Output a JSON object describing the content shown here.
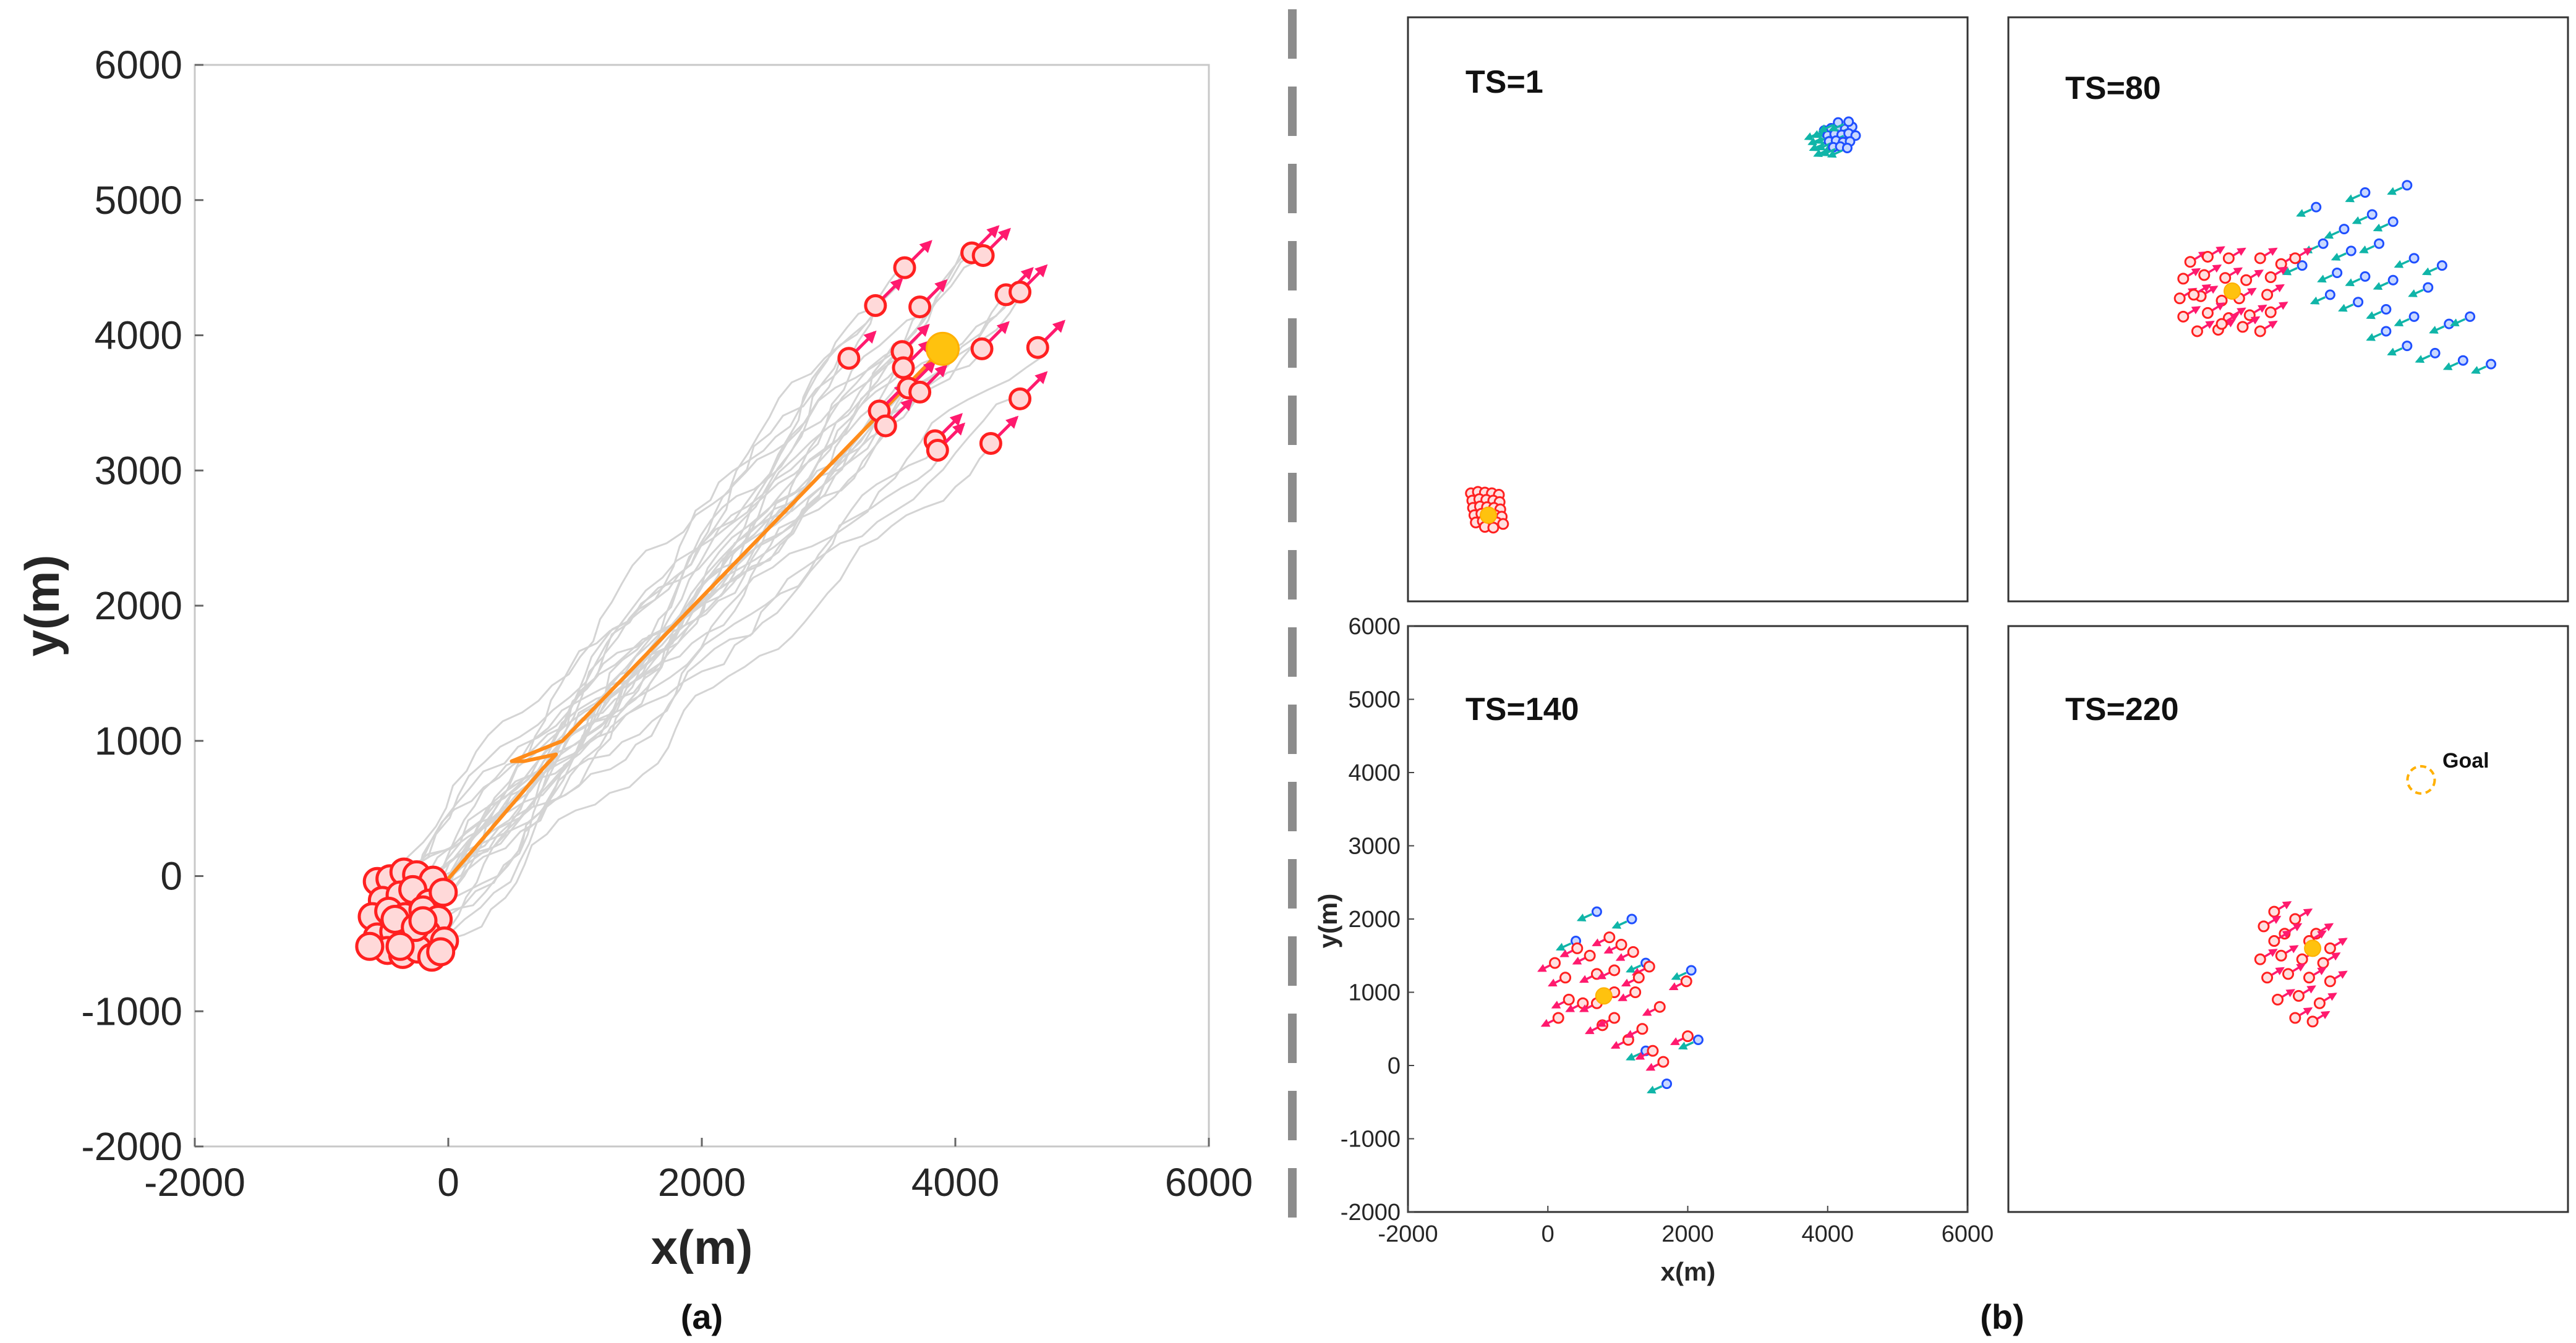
{
  "chart_data": [
    {
      "id": "a",
      "type": "scatter",
      "caption": "(a)",
      "xlabel": "x(m)",
      "ylabel": "y(m)",
      "xlim": [
        -2000,
        6000
      ],
      "ylim": [
        -2000,
        6000
      ],
      "xticks": [
        "-2000",
        "0",
        "2000",
        "4000",
        "6000"
      ],
      "yticks": [
        "-2000",
        "-1000",
        "0",
        "1000",
        "2000",
        "3000",
        "4000",
        "5000",
        "6000"
      ],
      "colors": {
        "agent": "#ff2020",
        "arrow": "#ff1a6e",
        "leader": "#ff8c1a",
        "goal": "#ffc20e",
        "traj": "#d4d4d4"
      },
      "series": [
        {
          "name": "start_agents",
          "points": [
            [
              -560,
              -40
            ],
            [
              -460,
              -20
            ],
            [
              -350,
              30
            ],
            [
              -250,
              10
            ],
            [
              -120,
              -30
            ],
            [
              -520,
              -180
            ],
            [
              -380,
              -140
            ],
            [
              -280,
              -100
            ],
            [
              -150,
              -200
            ],
            [
              -40,
              -120
            ],
            [
              -600,
              -300
            ],
            [
              -470,
              -260
            ],
            [
              -340,
              -300
            ],
            [
              -200,
              -250
            ],
            [
              -80,
              -320
            ],
            [
              -560,
              -450
            ],
            [
              -430,
              -410
            ],
            [
              -300,
              -470
            ],
            [
              -170,
              -420
            ],
            [
              -30,
              -480
            ],
            [
              -480,
              -550
            ],
            [
              -360,
              -580
            ],
            [
              -240,
              -540
            ],
            [
              -130,
              -600
            ],
            [
              -60,
              -560
            ],
            [
              -620,
              -520
            ],
            [
              -420,
              -320
            ],
            [
              -260,
              -380
            ],
            [
              -380,
              -520
            ],
            [
              -200,
              -330
            ]
          ]
        },
        {
          "name": "end_agents",
          "points": [
            [
              3600,
              4500
            ],
            [
              4130,
              4610
            ],
            [
              4220,
              4590
            ],
            [
              3370,
              4220
            ],
            [
              3720,
              4210
            ],
            [
              4400,
              4300
            ],
            [
              4510,
              4320
            ],
            [
              3160,
              3830
            ],
            [
              3580,
              3880
            ],
            [
              3590,
              3760
            ],
            [
              4210,
              3900
            ],
            [
              4650,
              3910
            ],
            [
              3400,
              3440
            ],
            [
              3630,
              3610
            ],
            [
              3720,
              3580
            ],
            [
              4510,
              3530
            ],
            [
              3450,
              3330
            ],
            [
              3840,
              3220
            ],
            [
              3860,
              3150
            ],
            [
              4280,
              3200
            ]
          ]
        },
        {
          "name": "leader_path",
          "points": [
            [
              0,
              -20
            ],
            [
              750,
              800
            ],
            [
              850,
              900
            ],
            [
              600,
              850
            ],
            [
              500,
              850
            ],
            [
              900,
              1000
            ],
            [
              3900,
              3900
            ]
          ]
        },
        {
          "name": "goal",
          "points": [
            [
              3900,
              3900
            ]
          ]
        }
      ]
    },
    {
      "id": "b1",
      "type": "scatter",
      "label": "TS=1",
      "xlim": [
        -2000,
        6000
      ],
      "ylim": [
        -2000,
        6000
      ],
      "series": [
        {
          "name": "red",
          "points": [
            [
              -1100,
              -520
            ],
            [
              -1000,
              -500
            ],
            [
              -900,
              -510
            ],
            [
              -800,
              -520
            ],
            [
              -700,
              -540
            ],
            [
              -1080,
              -620
            ],
            [
              -980,
              -600
            ],
            [
              -880,
              -610
            ],
            [
              -780,
              -620
            ],
            [
              -690,
              -640
            ],
            [
              -1070,
              -720
            ],
            [
              -970,
              -700
            ],
            [
              -870,
              -710
            ],
            [
              -770,
              -720
            ],
            [
              -680,
              -740
            ],
            [
              -1050,
              -820
            ],
            [
              -950,
              -800
            ],
            [
              -850,
              -810
            ],
            [
              -750,
              -820
            ],
            [
              -660,
              -840
            ],
            [
              -1030,
              -920
            ],
            [
              -930,
              -900
            ],
            [
              -830,
              -910
            ],
            [
              -730,
              -920
            ],
            [
              -640,
              -940
            ],
            [
              -900,
              -980
            ],
            [
              -780,
              -990
            ]
          ]
        },
        {
          "name": "blue",
          "points": [
            [
              3950,
              4450
            ],
            [
              4050,
              4480
            ],
            [
              4150,
              4490
            ],
            [
              4250,
              4470
            ],
            [
              4350,
              4500
            ],
            [
              4000,
              4380
            ],
            [
              4100,
              4400
            ],
            [
              4200,
              4390
            ],
            [
              4300,
              4410
            ],
            [
              4400,
              4380
            ],
            [
              4020,
              4300
            ],
            [
              4120,
              4310
            ],
            [
              4220,
              4290
            ],
            [
              4320,
              4300
            ],
            [
              4080,
              4220
            ],
            [
              4180,
              4230
            ],
            [
              4280,
              4210
            ],
            [
              4150,
              4560
            ],
            [
              4300,
              4570
            ]
          ]
        },
        {
          "name": "leader",
          "points": [
            [
              -850,
              -820
            ]
          ]
        }
      ]
    },
    {
      "id": "b2",
      "type": "scatter",
      "label": "TS=80",
      "xlim": [
        -2000,
        6000
      ],
      "ylim": [
        -2000,
        6000
      ],
      "series": [
        {
          "name": "red",
          "points": [
            [
              600,
              2650
            ],
            [
              850,
              2720
            ],
            [
              1150,
              2700
            ],
            [
              1600,
              2700
            ],
            [
              1900,
              2620
            ],
            [
              500,
              2420
            ],
            [
              800,
              2470
            ],
            [
              1100,
              2430
            ],
            [
              1400,
              2400
            ],
            [
              1750,
              2440
            ],
            [
              450,
              2150
            ],
            [
              750,
              2180
            ],
            [
              1050,
              2120
            ],
            [
              1300,
              2150
            ],
            [
              1700,
              2200
            ],
            [
              500,
              1900
            ],
            [
              850,
              1950
            ],
            [
              1150,
              1880
            ],
            [
              1450,
              1920
            ],
            [
              1750,
              1960
            ],
            [
              700,
              1700
            ],
            [
              1000,
              1720
            ],
            [
              1350,
              1760
            ],
            [
              1600,
              1700
            ],
            [
              2100,
              2700
            ],
            [
              650,
              2200
            ],
            [
              1050,
              1800
            ]
          ]
        },
        {
          "name": "blue",
          "points": [
            [
              2400,
              3400
            ],
            [
              2800,
              3100
            ],
            [
              3100,
              3600
            ],
            [
              3500,
              3200
            ],
            [
              3700,
              3700
            ],
            [
              2500,
              2900
            ],
            [
              2900,
              2800
            ],
            [
              3300,
              2900
            ],
            [
              3800,
              2700
            ],
            [
              4200,
              2600
            ],
            [
              2200,
              2600
            ],
            [
              2700,
              2500
            ],
            [
              3100,
              2450
            ],
            [
              3500,
              2400
            ],
            [
              4000,
              2300
            ],
            [
              2600,
              2200
            ],
            [
              3000,
              2100
            ],
            [
              3400,
              2000
            ],
            [
              3800,
              1900
            ],
            [
              4300,
              1800
            ],
            [
              3400,
              1700
            ],
            [
              3700,
              1500
            ],
            [
              4100,
              1400
            ],
            [
              4500,
              1300
            ],
            [
              4900,
              1250
            ],
            [
              4600,
              1900
            ],
            [
              3200,
              3300
            ]
          ]
        },
        {
          "name": "leader",
          "points": [
            [
              1200,
              2250
            ]
          ]
        }
      ]
    },
    {
      "id": "b3",
      "type": "scatter",
      "label": "TS=140",
      "xlabel": "x(m)",
      "ylabel": "y(m)",
      "xlim": [
        -2000,
        6000
      ],
      "ylim": [
        -2000,
        6000
      ],
      "xticks": [
        "-2000",
        "0",
        "2000",
        "4000",
        "6000"
      ],
      "yticks": [
        "-2000",
        "-1000",
        "0",
        "1000",
        "2000",
        "3000",
        "4000",
        "5000",
        "6000"
      ],
      "series": [
        {
          "name": "red",
          "points": [
            [
              100,
              1400
            ],
            [
              250,
              1200
            ],
            [
              420,
              1600
            ],
            [
              600,
              1500
            ],
            [
              880,
              1750
            ],
            [
              1050,
              1650
            ],
            [
              1220,
              1550
            ],
            [
              1450,
              1350
            ],
            [
              1980,
              1150
            ],
            [
              700,
              1250
            ],
            [
              950,
              1300
            ],
            [
              300,
              900
            ],
            [
              500,
              850
            ],
            [
              700,
              850
            ],
            [
              950,
              1000
            ],
            [
              1250,
              1000
            ],
            [
              1600,
              800
            ],
            [
              150,
              650
            ],
            [
              780,
              550
            ],
            [
              950,
              650
            ],
            [
              1150,
              350
            ],
            [
              1350,
              500
            ],
            [
              1500,
              200
            ],
            [
              1650,
              50
            ],
            [
              2000,
              400
            ],
            [
              1300,
              1200
            ]
          ]
        },
        {
          "name": "blue",
          "points": [
            [
              700,
              2100
            ],
            [
              1200,
              2000
            ],
            [
              400,
              1700
            ],
            [
              1400,
              1400
            ],
            [
              2050,
              1300
            ],
            [
              1400,
              200
            ],
            [
              2150,
              350
            ],
            [
              1700,
              -250
            ]
          ]
        },
        {
          "name": "leader",
          "points": [
            [
              800,
              950
            ]
          ]
        }
      ]
    },
    {
      "id": "b4",
      "type": "scatter",
      "label": "TS=220",
      "xlim": [
        -2000,
        6000
      ],
      "ylim": [
        -2000,
        6000
      ],
      "annotations": [
        {
          "text": "Goal"
        }
      ],
      "series": [
        {
          "name": "red",
          "points": [
            [
              1800,
              2100
            ],
            [
              2100,
              2000
            ],
            [
              2400,
              1800
            ],
            [
              1650,
              1900
            ],
            [
              1950,
              1800
            ],
            [
              2300,
              1700
            ],
            [
              2600,
              1600
            ],
            [
              1600,
              1450
            ],
            [
              1900,
              1500
            ],
            [
              2200,
              1450
            ],
            [
              2500,
              1400
            ],
            [
              1700,
              1200
            ],
            [
              2000,
              1250
            ],
            [
              2300,
              1200
            ],
            [
              2600,
              1150
            ],
            [
              1850,
              900
            ],
            [
              2150,
              950
            ],
            [
              2450,
              850
            ],
            [
              2100,
              650
            ],
            [
              2350,
              600
            ],
            [
              1800,
              1700
            ]
          ]
        },
        {
          "name": "leader",
          "points": [
            [
              2350,
              1600
            ]
          ]
        },
        {
          "name": "goal",
          "points": [
            [
              3900,
              3900
            ]
          ]
        }
      ]
    }
  ],
  "panel_b_caption": "(b)"
}
